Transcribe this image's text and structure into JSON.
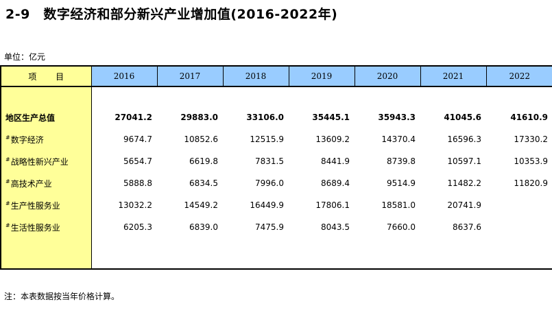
{
  "title": "2-9　数字经济和部分新兴产业增加值(2016-2022年)",
  "unit": "单位：亿元",
  "header": {
    "item_label": "项 目",
    "years": [
      "2016",
      "2017",
      "2018",
      "2019",
      "2020",
      "2021",
      "2022"
    ]
  },
  "rows": [
    {
      "label": "地区生产总值",
      "mark": "",
      "values": [
        "27041.2",
        "29883.0",
        "33106.0",
        "35445.1",
        "35943.3",
        "41045.6",
        "41610.9"
      ]
    },
    {
      "label": "数字经济",
      "mark": "#",
      "values": [
        "9674.7",
        "10852.6",
        "12515.9",
        "13609.2",
        "14370.4",
        "16596.3",
        "17330.2"
      ]
    },
    {
      "label": "战略性新兴产业",
      "mark": "#",
      "values": [
        "5654.7",
        "6619.8",
        "7831.5",
        "8441.9",
        "8739.8",
        "10597.1",
        "10353.9"
      ]
    },
    {
      "label": "高技术产业",
      "mark": "#",
      "values": [
        "5888.8",
        "6834.5",
        "7996.0",
        "8689.4",
        "9514.9",
        "11482.2",
        "11820.9"
      ]
    },
    {
      "label": "生产性服务业",
      "mark": "#",
      "values": [
        "13032.2",
        "14549.2",
        "16449.9",
        "17806.1",
        "18581.0",
        "20741.9",
        ""
      ]
    },
    {
      "label": "生活性服务业",
      "mark": "#",
      "values": [
        "6205.3",
        "6839.0",
        "7475.9",
        "8043.5",
        "7660.0",
        "8637.6",
        ""
      ]
    }
  ],
  "note": "注：本表数据按当年价格计算。"
}
